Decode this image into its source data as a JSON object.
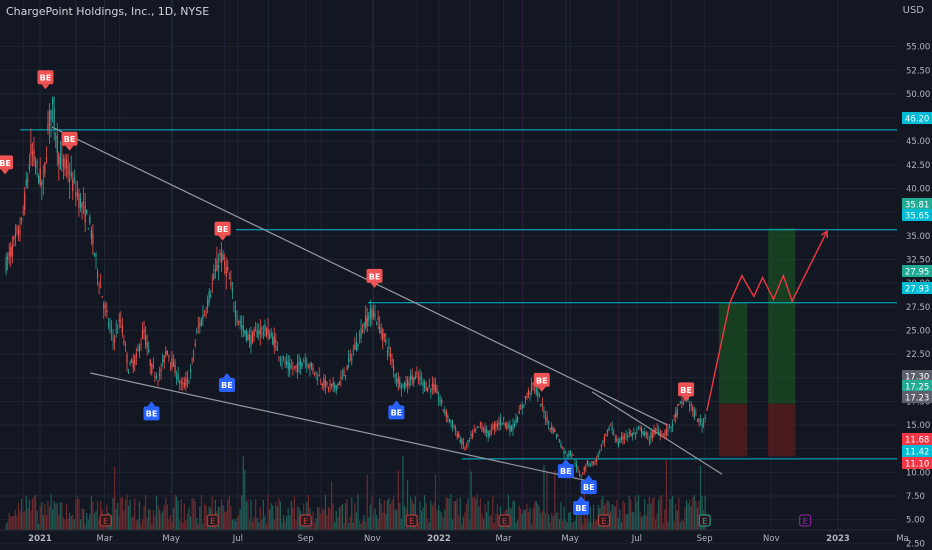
{
  "header": {
    "title": "ChargePoint Holdings, Inc., 1D, NYSE",
    "currency": "USD"
  },
  "chart_data": {
    "type": "candlestick",
    "title": "ChargePoint Holdings, Inc., 1D, NYSE",
    "y_axis": {
      "ticks": [
        "55.00",
        "52.50",
        "50.00",
        "47.50",
        "45.00",
        "42.50",
        "40.00",
        "37.50",
        "35.00",
        "32.50",
        "30.00",
        "27.50",
        "25.00",
        "22.50",
        "20.00",
        "17.50",
        "15.00",
        "12.50",
        "10.00",
        "7.50",
        "5.00",
        "2.50"
      ],
      "tick_values": [
        55,
        52.5,
        50,
        47.5,
        45,
        42.5,
        40,
        37.5,
        35,
        32.5,
        30,
        27.5,
        25,
        22.5,
        20,
        17.5,
        15,
        12.5,
        10,
        7.5,
        5,
        2.5
      ],
      "ylim": [
        2.0,
        57.5
      ],
      "position": "right"
    },
    "x_axis": {
      "labels": [
        "2021",
        "Mar",
        "May",
        "Jul",
        "Sep",
        "Nov",
        "2022",
        "Mar",
        "May",
        "Jul",
        "Sep",
        "Nov",
        "2023",
        "Ma"
      ]
    },
    "price_labels": [
      {
        "text": "46.20",
        "value": 46.2,
        "color": "#00bcd4"
      },
      {
        "text": "35.81",
        "value": 35.81,
        "color": "#22ab94"
      },
      {
        "text": "35.65",
        "value": 35.65,
        "color": "#00bcd4"
      },
      {
        "text": "27.95",
        "value": 27.95,
        "color": "#22ab94"
      },
      {
        "text": "27.93",
        "value": 27.93,
        "color": "#00bcd4"
      },
      {
        "text": "17.30",
        "value": 17.3,
        "color": "#5d606b"
      },
      {
        "text": "17.25",
        "value": 17.25,
        "color": "#22ab94"
      },
      {
        "text": "17.23",
        "value": 17.23,
        "color": "#5d606b"
      },
      {
        "text": "11.68",
        "value": 11.68,
        "color": "#f23645"
      },
      {
        "text": "11.42",
        "value": 11.42,
        "color": "#00bcd4"
      },
      {
        "text": "11.10",
        "value": 11.1,
        "color": "#f23645"
      }
    ],
    "horizontal_levels": [
      46.2,
      35.65,
      27.93,
      11.42
    ],
    "signal_label": "BE",
    "sell_signals": [
      {
        "date": "2021-01-06",
        "price": 50.5
      },
      {
        "date": "2021-01-28",
        "price": 44.0
      },
      {
        "date": "2021-06-17",
        "price": 34.5
      },
      {
        "date": "2021-11-03",
        "price": 29.5
      },
      {
        "date": "2022-04-05",
        "price": 18.5
      },
      {
        "date": "2022-08-15",
        "price": 17.5
      }
    ],
    "buy_signals": [
      {
        "date": "2021-04-13",
        "price": 17.5
      },
      {
        "date": "2021-06-21",
        "price": 20.5
      },
      {
        "date": "2021-11-23",
        "price": 17.6
      },
      {
        "date": "2022-04-27",
        "price": 11.4
      },
      {
        "date": "2022-05-11",
        "price": 7.5
      },
      {
        "date": "2022-05-18",
        "price": 9.7
      }
    ],
    "trendlines": [
      {
        "from": {
          "date": "2021-01-12",
          "price": 46.5
        },
        "to": {
          "date": "2022-07-29",
          "price": 15.0
        }
      },
      {
        "from": {
          "date": "2021-02-16",
          "price": 20.5
        },
        "to": {
          "date": "2022-05-21",
          "price": 9.0
        }
      },
      {
        "from": {
          "date": "2022-05-21",
          "price": 18.5
        },
        "to": {
          "date": "2022-09-17",
          "price": 9.8
        }
      }
    ],
    "positions": [
      {
        "from_date": "2022-09-14",
        "to_date": "2022-10-10",
        "entry": 17.25,
        "target": 27.95,
        "stop": 11.68
      },
      {
        "from_date": "2022-10-29",
        "to_date": "2022-11-23",
        "entry": 17.25,
        "target": 35.81,
        "stop": 11.68
      }
    ],
    "projection_path": [
      {
        "date": "2022-09-03",
        "price": 16.5
      },
      {
        "date": "2022-09-24",
        "price": 27.9
      },
      {
        "date": "2022-10-05",
        "price": 30.8
      },
      {
        "date": "2022-10-16",
        "price": 28.6
      },
      {
        "date": "2022-10-24",
        "price": 30.6
      },
      {
        "date": "2022-11-03",
        "price": 28.3
      },
      {
        "date": "2022-11-12",
        "price": 30.8
      },
      {
        "date": "2022-11-20",
        "price": 28.1
      },
      {
        "date": "2022-12-22",
        "price": 35.5
      }
    ],
    "earnings_marker": "E",
    "earnings_dates": [
      "2021-03-02",
      "2021-06-08",
      "2021-09-01",
      "2021-12-07",
      "2022-03-02",
      "2022-06-01",
      "2022-09-01"
    ],
    "future_earnings_dates": [
      "2022-12-02"
    ],
    "price_path": [
      {
        "date": "2020-12-01",
        "price": 32
      },
      {
        "date": "2020-12-15",
        "price": 36
      },
      {
        "date": "2020-12-24",
        "price": 44
      },
      {
        "date": "2021-01-04",
        "price": 40
      },
      {
        "date": "2021-01-08",
        "price": 46
      },
      {
        "date": "2021-01-12",
        "price": 49
      },
      {
        "date": "2021-01-19",
        "price": 43
      },
      {
        "date": "2021-01-26",
        "price": 42
      },
      {
        "date": "2021-02-02",
        "price": 40
      },
      {
        "date": "2021-02-09",
        "price": 38
      },
      {
        "date": "2021-02-16",
        "price": 36
      },
      {
        "date": "2021-02-23",
        "price": 31
      },
      {
        "date": "2021-03-02",
        "price": 27
      },
      {
        "date": "2021-03-09",
        "price": 24
      },
      {
        "date": "2021-03-16",
        "price": 26
      },
      {
        "date": "2021-03-23",
        "price": 21
      },
      {
        "date": "2021-03-30",
        "price": 22
      },
      {
        "date": "2021-04-06",
        "price": 25
      },
      {
        "date": "2021-04-13",
        "price": 21
      },
      {
        "date": "2021-04-20",
        "price": 20
      },
      {
        "date": "2021-04-27",
        "price": 23
      },
      {
        "date": "2021-05-04",
        "price": 21
      },
      {
        "date": "2021-05-11",
        "price": 19
      },
      {
        "date": "2021-05-18",
        "price": 20
      },
      {
        "date": "2021-05-25",
        "price": 25
      },
      {
        "date": "2021-06-01",
        "price": 27
      },
      {
        "date": "2021-06-08",
        "price": 30
      },
      {
        "date": "2021-06-15",
        "price": 33
      },
      {
        "date": "2021-06-22",
        "price": 31
      },
      {
        "date": "2021-06-29",
        "price": 27
      },
      {
        "date": "2021-07-06",
        "price": 25
      },
      {
        "date": "2021-07-13",
        "price": 24
      },
      {
        "date": "2021-07-20",
        "price": 25
      },
      {
        "date": "2021-07-27",
        "price": 25
      },
      {
        "date": "2021-08-03",
        "price": 24
      },
      {
        "date": "2021-08-10",
        "price": 22
      },
      {
        "date": "2021-08-17",
        "price": 21
      },
      {
        "date": "2021-08-24",
        "price": 21
      },
      {
        "date": "2021-08-31",
        "price": 22
      },
      {
        "date": "2021-09-07",
        "price": 21
      },
      {
        "date": "2021-09-14",
        "price": 20
      },
      {
        "date": "2021-09-21",
        "price": 19
      },
      {
        "date": "2021-09-28",
        "price": 19
      },
      {
        "date": "2021-10-05",
        "price": 20
      },
      {
        "date": "2021-10-12",
        "price": 22
      },
      {
        "date": "2021-10-19",
        "price": 24
      },
      {
        "date": "2021-10-26",
        "price": 26
      },
      {
        "date": "2021-11-02",
        "price": 27
      },
      {
        "date": "2021-11-09",
        "price": 25
      },
      {
        "date": "2021-11-16",
        "price": 23
      },
      {
        "date": "2021-11-23",
        "price": 20
      },
      {
        "date": "2021-11-30",
        "price": 19
      },
      {
        "date": "2021-12-07",
        "price": 20
      },
      {
        "date": "2021-12-14",
        "price": 20
      },
      {
        "date": "2021-12-21",
        "price": 19
      },
      {
        "date": "2021-12-28",
        "price": 19
      },
      {
        "date": "2022-01-04",
        "price": 17
      },
      {
        "date": "2022-01-11",
        "price": 15.5
      },
      {
        "date": "2022-01-18",
        "price": 14
      },
      {
        "date": "2022-01-25",
        "price": 12.5
      },
      {
        "date": "2022-02-01",
        "price": 14
      },
      {
        "date": "2022-02-08",
        "price": 15
      },
      {
        "date": "2022-02-15",
        "price": 14
      },
      {
        "date": "2022-02-22",
        "price": 15
      },
      {
        "date": "2022-03-01",
        "price": 15.5
      },
      {
        "date": "2022-03-08",
        "price": 14.5
      },
      {
        "date": "2022-03-15",
        "price": 16
      },
      {
        "date": "2022-03-22",
        "price": 18
      },
      {
        "date": "2022-03-29",
        "price": 19.5
      },
      {
        "date": "2022-04-05",
        "price": 17
      },
      {
        "date": "2022-04-12",
        "price": 15
      },
      {
        "date": "2022-04-19",
        "price": 14
      },
      {
        "date": "2022-04-26",
        "price": 12
      },
      {
        "date": "2022-05-03",
        "price": 12
      },
      {
        "date": "2022-05-10",
        "price": 9.5
      },
      {
        "date": "2022-05-17",
        "price": 11
      },
      {
        "date": "2022-05-24",
        "price": 11
      },
      {
        "date": "2022-05-31",
        "price": 13
      },
      {
        "date": "2022-06-07",
        "price": 15
      },
      {
        "date": "2022-06-14",
        "price": 13
      },
      {
        "date": "2022-06-21",
        "price": 14
      },
      {
        "date": "2022-06-28",
        "price": 14
      },
      {
        "date": "2022-07-05",
        "price": 14.5
      },
      {
        "date": "2022-07-12",
        "price": 13.5
      },
      {
        "date": "2022-07-19",
        "price": 14.5
      },
      {
        "date": "2022-07-26",
        "price": 14
      },
      {
        "date": "2022-08-02",
        "price": 15
      },
      {
        "date": "2022-08-09",
        "price": 17
      },
      {
        "date": "2022-08-16",
        "price": 18
      },
      {
        "date": "2022-08-23",
        "price": 16
      },
      {
        "date": "2022-08-30",
        "price": 15
      },
      {
        "date": "2022-09-02",
        "price": 16
      }
    ],
    "colors": {
      "background": "#131722",
      "grid": "#1f2433",
      "up": "#26a69a",
      "down": "#ef5350",
      "level": "#00bcd4",
      "trendline": "#9598a1",
      "sell_marker": "#f05354",
      "buy_marker": "#2962ff",
      "projection": "#f23645",
      "target_zone": "#1b5e20",
      "stop_zone": "#6d1b1b",
      "earnings": "#c44646",
      "earnings_future": "#9c27b0"
    }
  }
}
